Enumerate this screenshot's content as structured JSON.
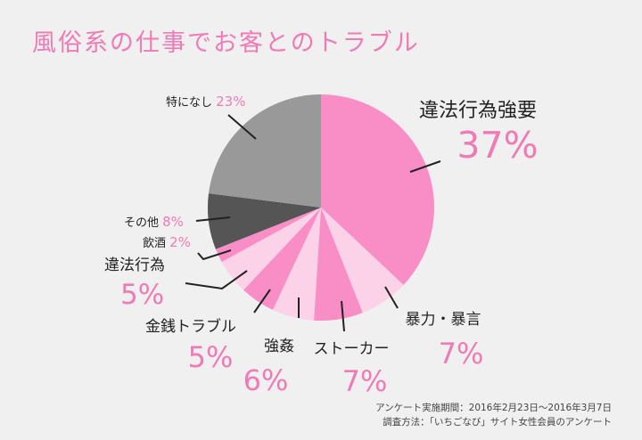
{
  "page": {
    "title": "風俗系の仕事でお客とのトラブル",
    "notes": [
      "アンケート実施期間：2016年2月23日～2016年3月7日",
      "調査方法：「いちごなび」サイト女性会員のアンケート"
    ]
  },
  "colors": {
    "accent": "#f07ab5",
    "label_text": "#222222",
    "leader_line": "#222222"
  },
  "chart_data": {
    "type": "pie",
    "title": "風俗系の仕事でお客とのトラブル",
    "start": "12 o'clock",
    "direction": "clockwise",
    "legend": "none",
    "slices": [
      {
        "label": "違法行為強要",
        "value": 37,
        "display": "37%",
        "color": "#f98ec7"
      },
      {
        "label": "暴力・暴言",
        "value": 7,
        "display": "7%",
        "color": "#fcd2e8"
      },
      {
        "label": "ストーカー",
        "value": 7,
        "display": "7%",
        "color": "#f98ec7"
      },
      {
        "label": "強姦",
        "value": 6,
        "display": "6%",
        "color": "#fcd2e8"
      },
      {
        "label": "金銭トラブル",
        "value": 5,
        "display": "5%",
        "color": "#f98ec7"
      },
      {
        "label": "違法行為",
        "value": 5,
        "display": "5%",
        "color": "#fcd2e8"
      },
      {
        "label": "飲酒",
        "value": 2,
        "display": "2%",
        "color": "#f98ec7"
      },
      {
        "label": "その他",
        "value": 8,
        "display": "8%",
        "color": "#555555"
      },
      {
        "label": "特になし",
        "value": 23,
        "display": "23%",
        "color": "#999999"
      }
    ]
  }
}
